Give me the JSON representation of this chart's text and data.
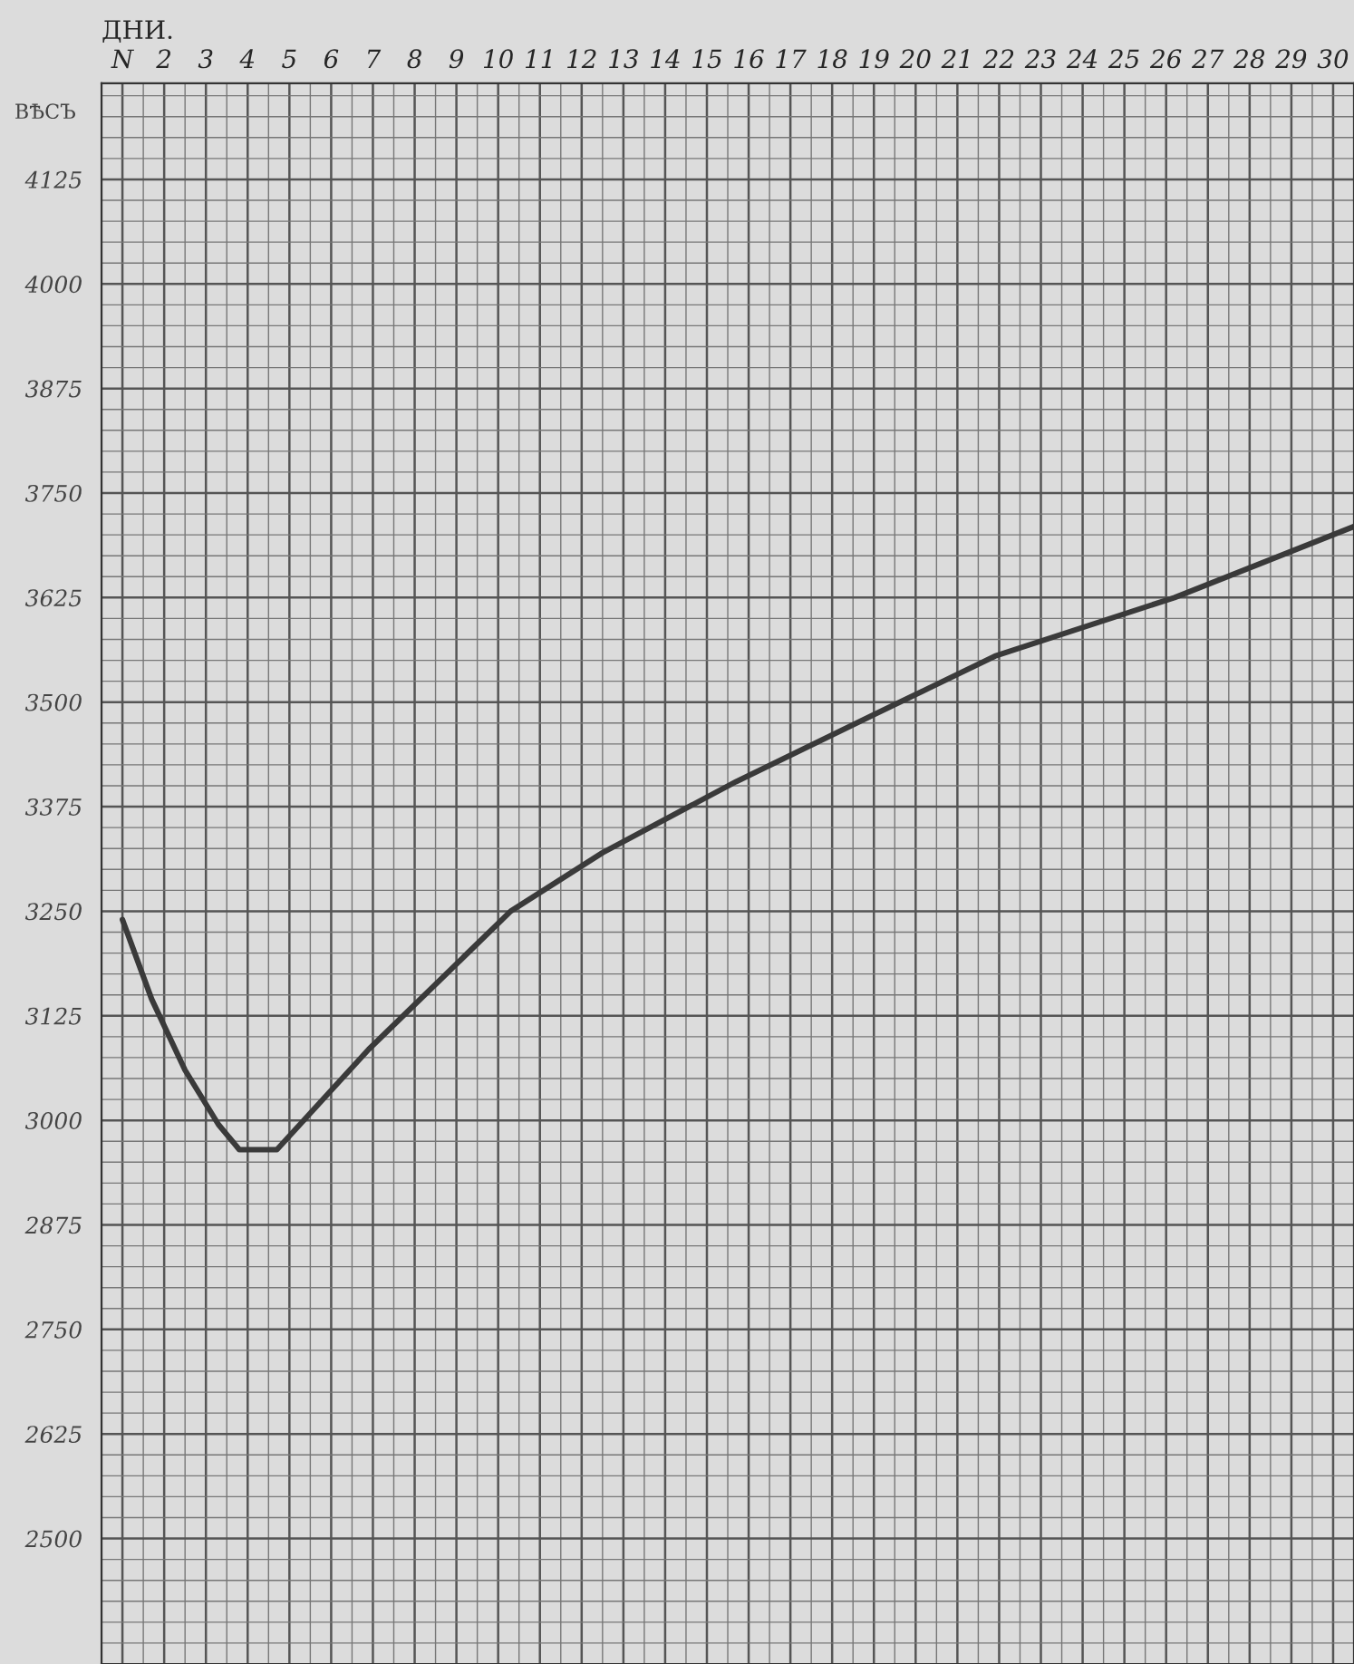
{
  "chart_data": {
    "type": "line",
    "xlabel": "ДНИ.",
    "ylabel": "ВѢСЪ",
    "x": [
      1,
      1.7,
      2.5,
      3.3,
      3.8,
      4.7,
      6.9,
      10.3,
      12.5,
      15.7,
      19,
      21.9,
      26.2,
      30.5
    ],
    "series": [
      {
        "color": "#3a3a3a",
        "values": [
          3240,
          3145,
          3060,
          2995,
          2965,
          2965,
          3085,
          3250,
          3320,
          3405,
          3485,
          3555,
          3625,
          3710
        ]
      }
    ],
    "xlim": [
      0.5,
      30.5
    ],
    "xticks": [
      {
        "value": 1,
        "label": "N"
      },
      2,
      3,
      4,
      5,
      6,
      7,
      8,
      9,
      10,
      11,
      12,
      13,
      14,
      15,
      16,
      17,
      18,
      19,
      20,
      21,
      22,
      23,
      24,
      25,
      26,
      27,
      28,
      29,
      30
    ],
    "ylim": [
      2350,
      4240
    ],
    "yticks": [
      2500,
      2625,
      2750,
      2875,
      3000,
      3125,
      3250,
      3375,
      3500,
      3625,
      3750,
      3875,
      4000,
      4125
    ],
    "grid": true,
    "marker": "none",
    "line_style": "solid"
  }
}
